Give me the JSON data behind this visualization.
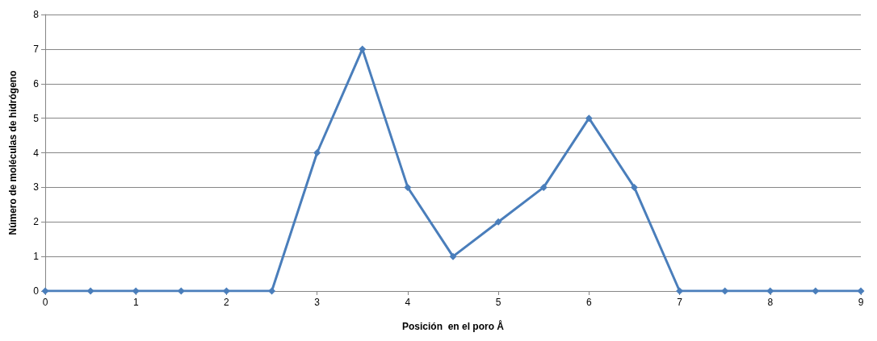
{
  "chart_data": {
    "type": "line",
    "xlabel": "Posición  en el poro Å",
    "ylabel": "Número de moléculas de hidrógeno",
    "x": [
      0,
      0.5,
      1,
      1.5,
      2,
      2.5,
      3,
      3.5,
      4,
      4.5,
      5,
      5.5,
      6,
      6.5,
      7,
      7.5,
      8,
      8.5,
      9
    ],
    "series": [
      {
        "color": "#4a7ebb",
        "values": [
          0,
          0,
          0,
          0,
          0,
          0,
          4,
          7,
          3,
          1,
          2,
          3,
          5,
          3,
          0,
          0,
          0,
          0,
          0
        ]
      }
    ],
    "xlim": [
      0,
      9
    ],
    "xticks": [
      0,
      1,
      2,
      3,
      4,
      5,
      6,
      7,
      8,
      9
    ],
    "ylim": [
      0,
      8
    ],
    "yticks": [
      0,
      1,
      2,
      3,
      4,
      5,
      6,
      7,
      8
    ],
    "grid": "y",
    "marker": "diamond",
    "line_style": "solid"
  }
}
